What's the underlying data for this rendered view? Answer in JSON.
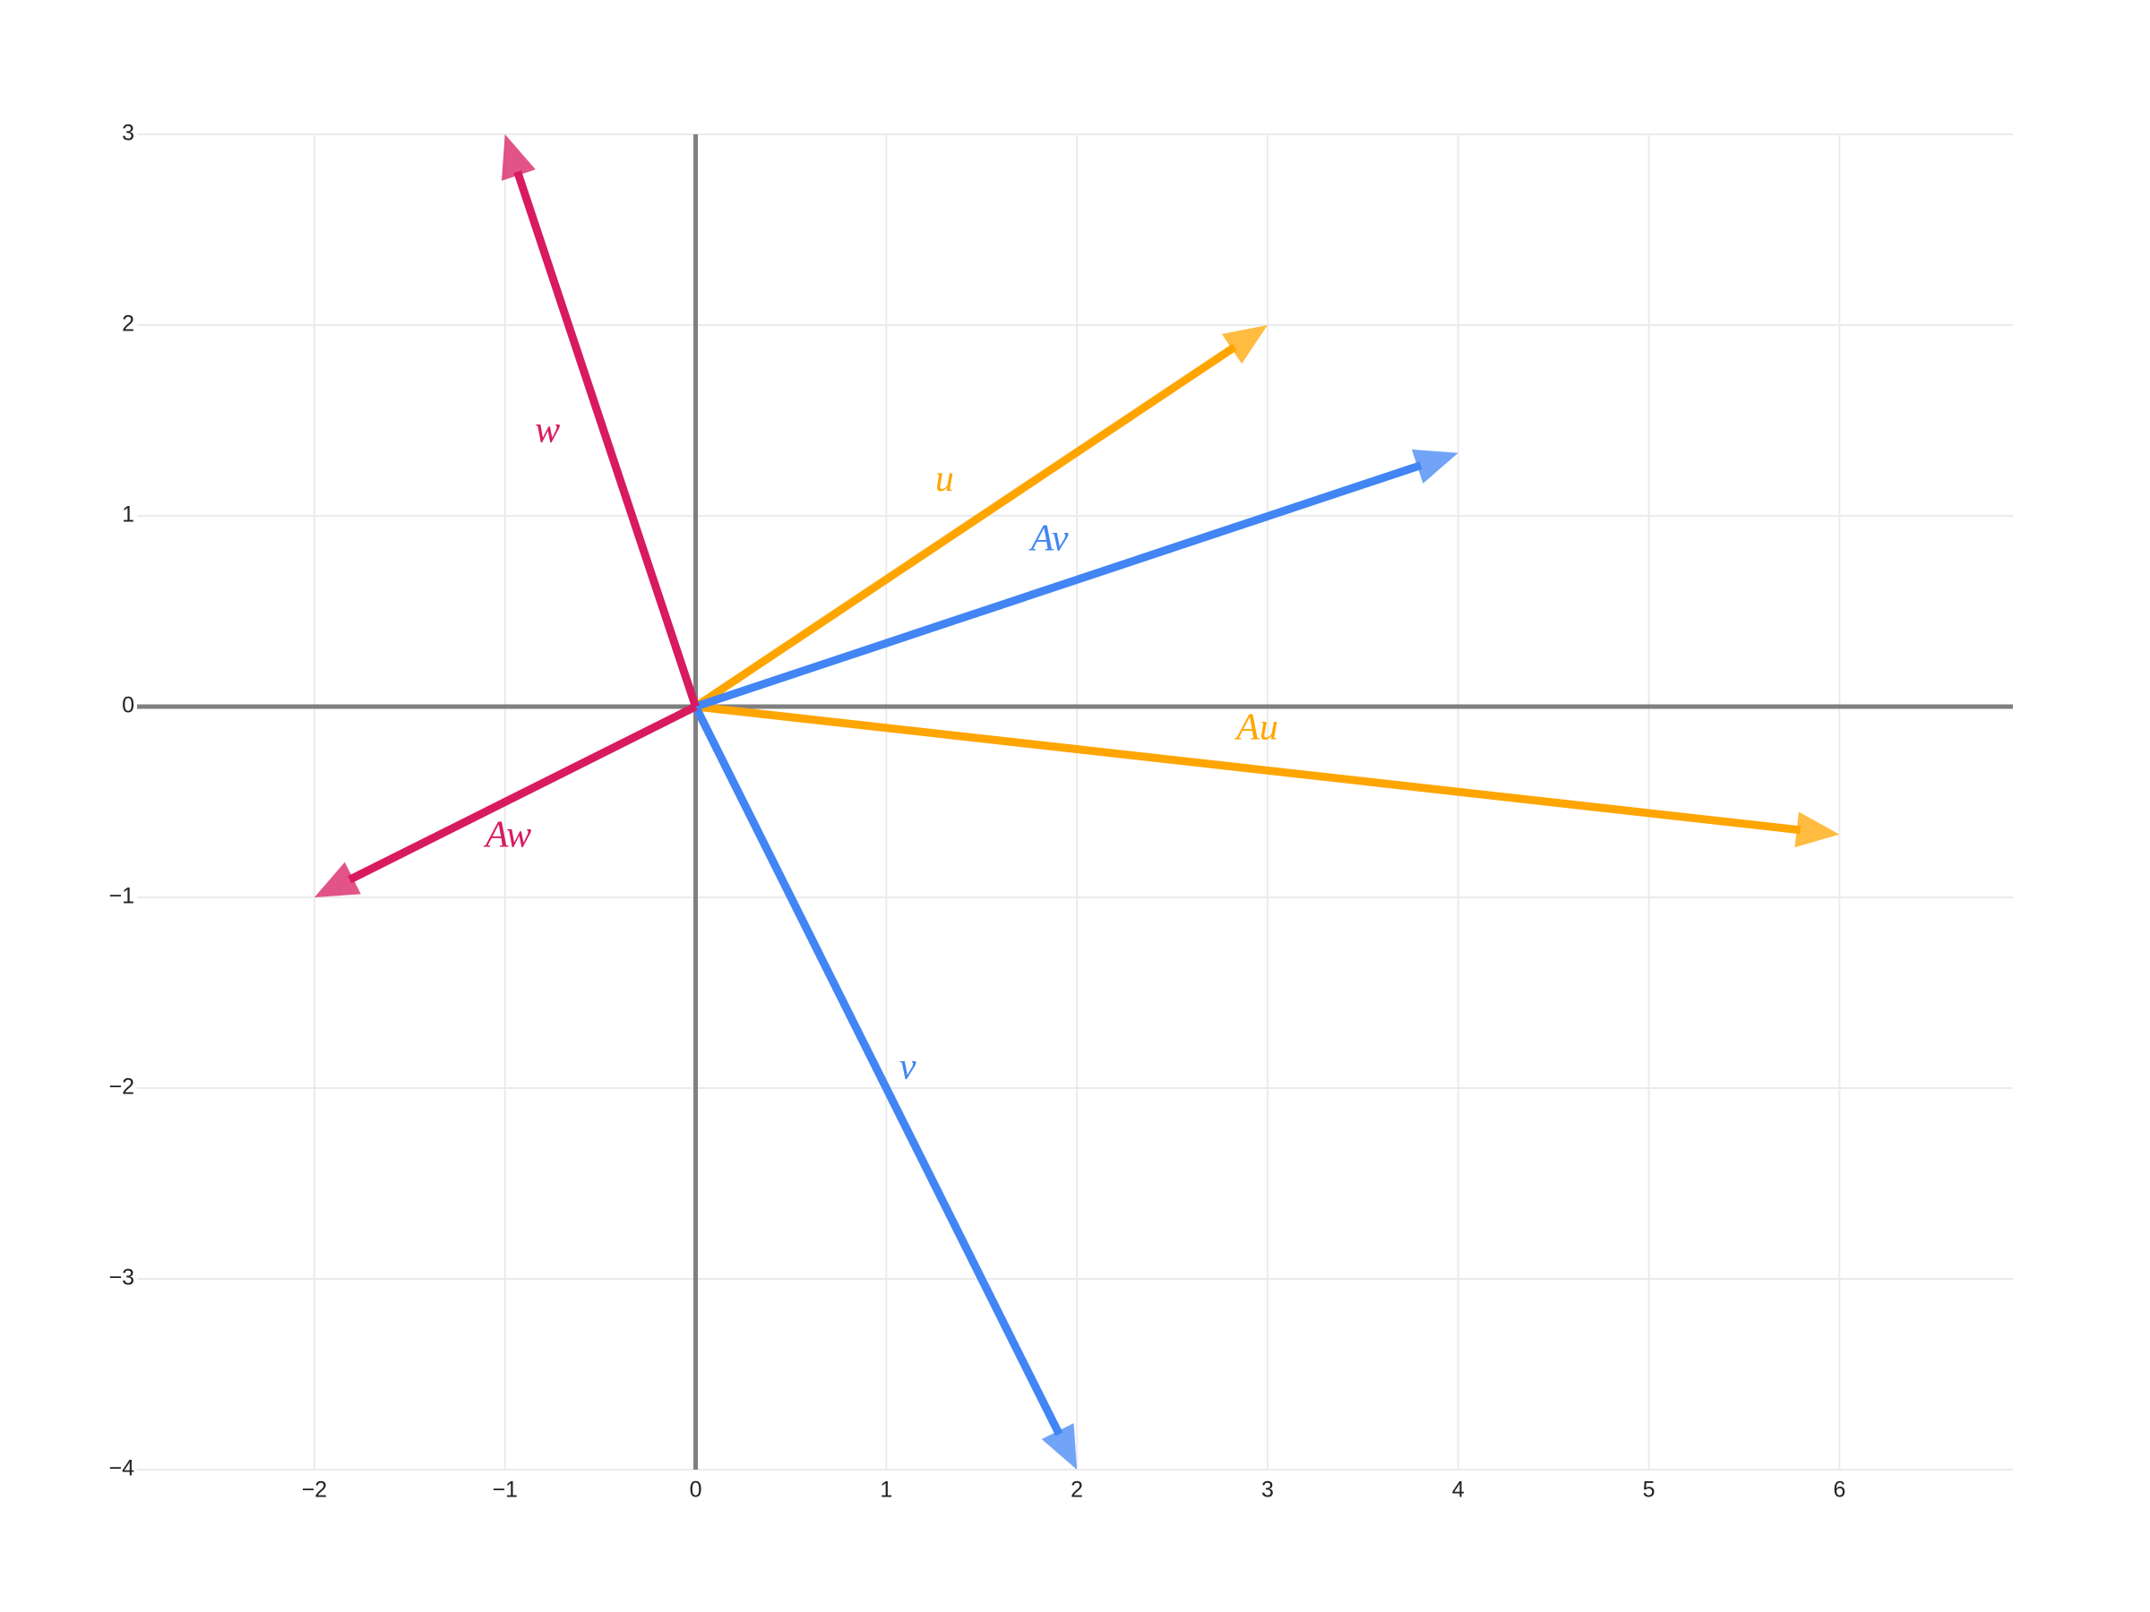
{
  "chart_data": {
    "type": "vector",
    "xlim": [
      -2.93,
      6.91
    ],
    "ylim": [
      -4,
      3
    ],
    "xticks": [
      {
        "value": -2,
        "label": "−2"
      },
      {
        "value": -1,
        "label": "−1"
      },
      0,
      1,
      2,
      3,
      4,
      5,
      6
    ],
    "yticks": [
      {
        "value": -4,
        "label": "−4"
      },
      {
        "value": -3,
        "label": "−3"
      },
      {
        "value": -2,
        "label": "−2"
      },
      {
        "value": -1,
        "label": "−1"
      },
      0,
      1,
      2,
      3
    ],
    "grid": true,
    "zeroline": true,
    "vectors": [
      {
        "name": "u⃗",
        "color": "#ffa500",
        "dx": 3,
        "dy": 2
      },
      {
        "name": "Au⃗",
        "color": "#ffa500",
        "dx": 6,
        "dy": -0.67
      },
      {
        "name": "v⃗",
        "color": "#4285f4",
        "dx": 2,
        "dy": -4
      },
      {
        "name": "Av⃗",
        "color": "#4285f4",
        "dx": 4,
        "dy": 1.33
      },
      {
        "name": "w⃗",
        "color": "#d81b60",
        "dx": -1,
        "dy": 3
      },
      {
        "name": "Aw⃗",
        "color": "#d81b60",
        "dx": -2,
        "dy": -1
      }
    ]
  }
}
